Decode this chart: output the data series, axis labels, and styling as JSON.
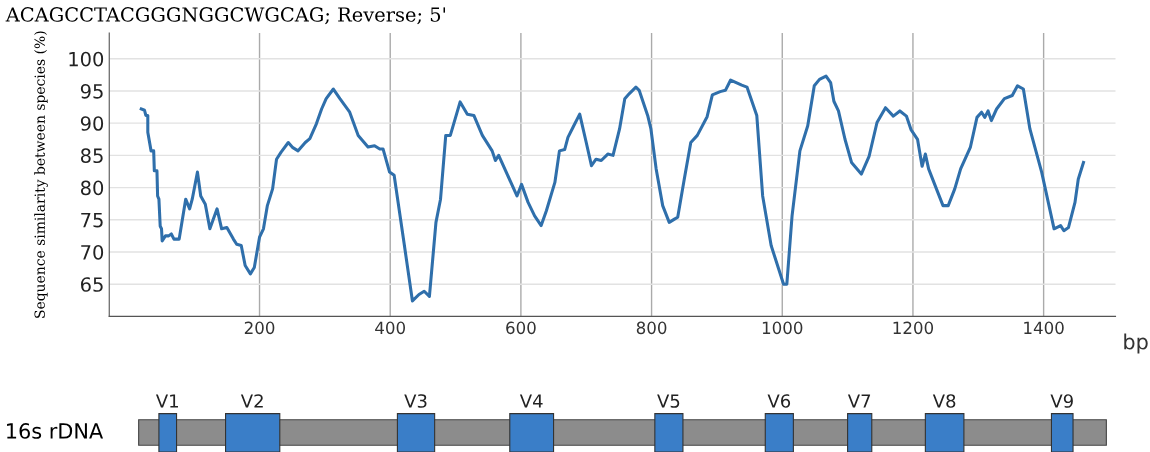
{
  "chart_data": [
    {
      "type": "line",
      "ylabel": "Sequence similarity between species (%)",
      "xlabel": "bp",
      "annotations": [
        "ACAGCCTACGGGNGGCWGCAG; Reverse; 5'"
      ],
      "xlim": [
        -30,
        1510
      ],
      "ylim": [
        60,
        104
      ],
      "xticks": [
        200,
        400,
        600,
        800,
        1000,
        1200,
        1400
      ],
      "yticks": [
        65,
        70,
        75,
        80,
        85,
        90,
        95,
        100
      ],
      "grid": true,
      "marker": "none",
      "line_style": "solid",
      "series": [
        {
          "color": "#2f6fab",
          "x": [
            19,
            24,
            26,
            29,
            29,
            34,
            38,
            39,
            43,
            44,
            46,
            48,
            50,
            51,
            56,
            61,
            65,
            69,
            77,
            87,
            93,
            97,
            105,
            110,
            117,
            124,
            135,
            142,
            150,
            160,
            165,
            172,
            178,
            186,
            192,
            200,
            206,
            212,
            220,
            226,
            233,
            244,
            251,
            259,
            270,
            277,
            287,
            295,
            302,
            313,
            323,
            338,
            351,
            366,
            376,
            384,
            389,
            399,
            406,
            421,
            434,
            444,
            452,
            460,
            470,
            477,
            485,
            492,
            507,
            518,
            528,
            541,
            556,
            561,
            566,
            594,
            601,
            611,
            621,
            631,
            639,
            652,
            659,
            667,
            672,
            680,
            690,
            700,
            708,
            715,
            723,
            733,
            741,
            751,
            759,
            766,
            776,
            781,
            794,
            799,
            807,
            817,
            827,
            835,
            840,
            850,
            860,
            870,
            885,
            893,
            905,
            913,
            921,
            938,
            946,
            961,
            970,
            983,
            1002,
            1007,
            1015,
            1027,
            1039,
            1049,
            1057,
            1067,
            1074,
            1079,
            1086,
            1096,
            1106,
            1121,
            1133,
            1145,
            1158,
            1170,
            1180,
            1190,
            1197,
            1207,
            1214,
            1219,
            1224,
            1234,
            1246,
            1254,
            1264,
            1273,
            1288,
            1298,
            1305,
            1310,
            1315,
            1320,
            1328,
            1340,
            1352,
            1360,
            1369,
            1379,
            1397,
            1416,
            1426,
            1431,
            1438,
            1448,
            1453,
            1461
          ],
          "values": [
            92.2,
            92,
            91.2,
            91.2,
            88.6,
            85.7,
            85.7,
            82.6,
            82.6,
            78.7,
            78.2,
            74,
            73.6,
            71.7,
            72.5,
            72.5,
            72.8,
            72,
            72,
            78.2,
            76.7,
            78.2,
            82.4,
            78.7,
            77.4,
            73.6,
            76.7,
            73.6,
            73.8,
            72,
            71.2,
            71,
            67.9,
            66.6,
            67.6,
            72.3,
            73.6,
            77.2,
            79.8,
            84.4,
            85.5,
            87,
            86.2,
            85.7,
            87,
            87.6,
            89.9,
            92.2,
            93.8,
            95.3,
            93.8,
            91.7,
            88.1,
            86.3,
            86.5,
            86,
            86,
            82.4,
            81.9,
            71.5,
            62.4,
            63.4,
            63.9,
            63.1,
            74.6,
            78.2,
            88.1,
            88.1,
            93.3,
            91.4,
            91.2,
            88.1,
            85.7,
            84.2,
            85,
            78.7,
            80.5,
            77.7,
            75.6,
            74.1,
            76.4,
            80.8,
            85.7,
            85.9,
            87.8,
            89.4,
            91.4,
            87,
            83.4,
            84.4,
            84.2,
            85.2,
            85,
            89.1,
            93.8,
            94.6,
            95.6,
            95.1,
            91.2,
            89.1,
            82.9,
            77.2,
            74.6,
            75.1,
            75.4,
            81.3,
            87,
            88.1,
            91,
            94.4,
            94.9,
            95.1,
            96.7,
            95.9,
            95.6,
            91.2,
            78.7,
            71,
            65,
            65,
            75.6,
            85.7,
            89.6,
            95.8,
            96.8,
            97.3,
            96.3,
            93.4,
            91.9,
            87.5,
            83.9,
            82.1,
            84.9,
            90.1,
            92.4,
            91.1,
            91.9,
            91.1,
            89,
            87.5,
            83.3,
            85.2,
            82.9,
            80.3,
            77.2,
            77.2,
            79.8,
            82.9,
            86.3,
            90.9,
            91.7,
            90.9,
            91.9,
            90.4,
            92.2,
            93.8,
            94.3,
            95.8,
            95.3,
            89.1,
            82.4,
            73.6,
            74.1,
            73.3,
            73.8,
            77.7,
            81.3,
            83.9
          ]
        }
      ]
    },
    {
      "type": "other",
      "ylabel": "16s rDNA",
      "categories": [
        "V1",
        "V2",
        "V3",
        "V4",
        "V5",
        "V6",
        "V7",
        "V8",
        "V9"
      ]
    }
  ]
}
